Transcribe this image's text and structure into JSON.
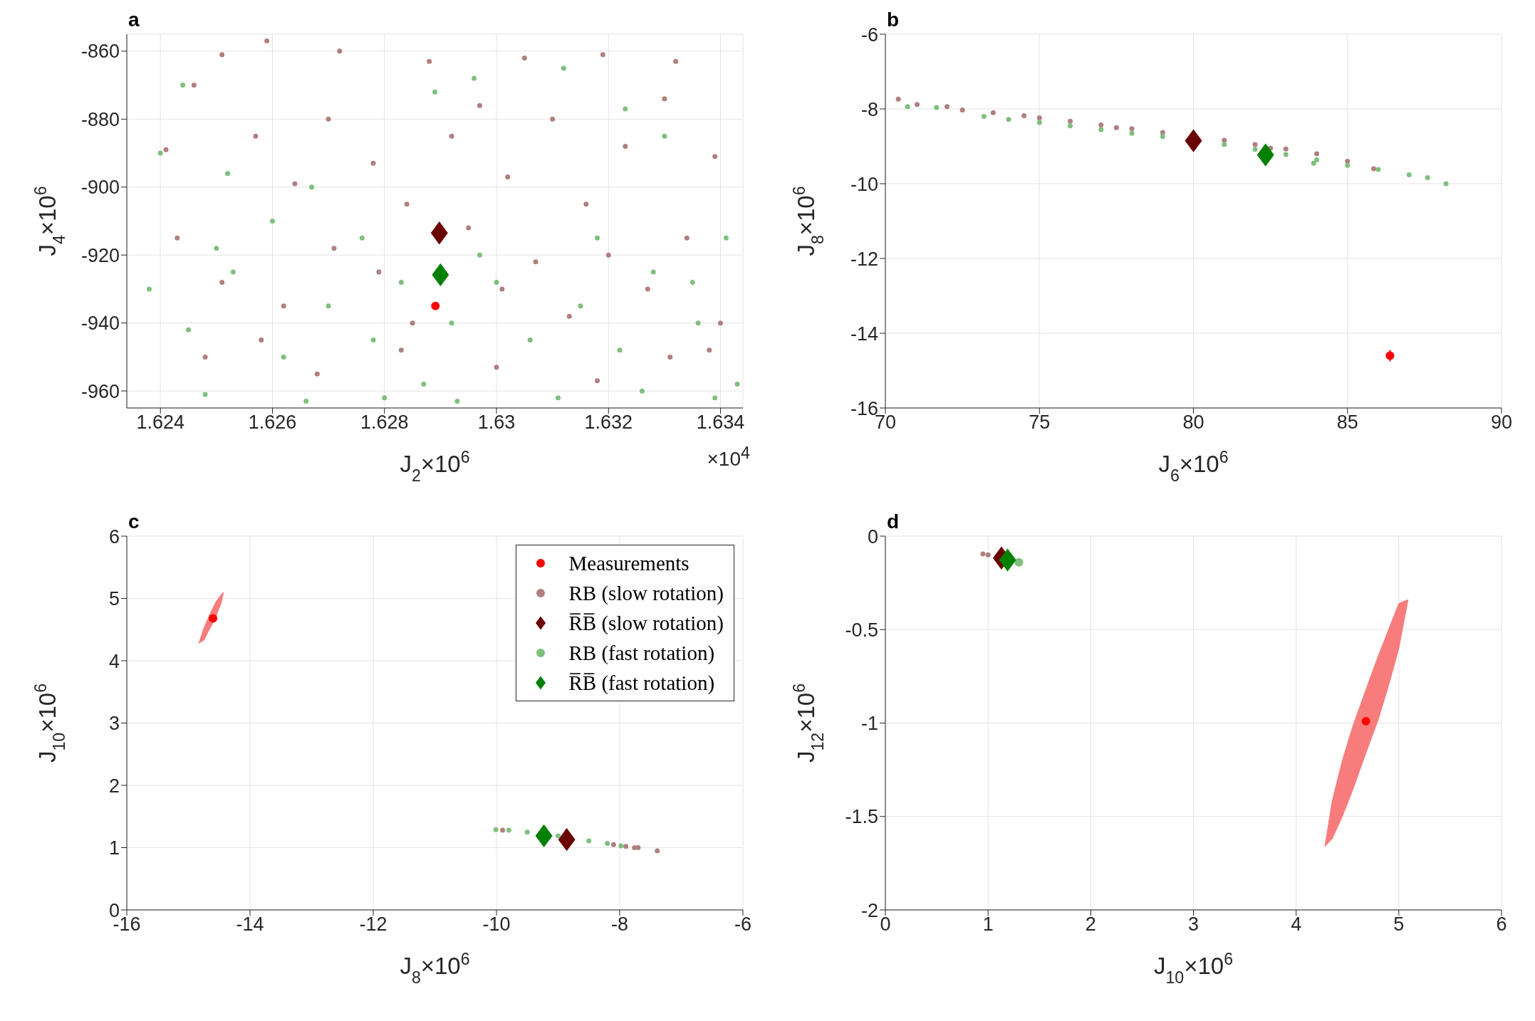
{
  "chart_data": [
    {
      "type": "scatter",
      "title": "a",
      "xlabel": "J$_{2}$×10$^{6}$",
      "ylabel": "J$_{4}$×10$^{6}$",
      "annotations": [
        "×10$^{4}$"
      ],
      "grid": true,
      "xlim": [
        1.6234,
        1.6344
      ],
      "xticks": [
        1.624,
        1.626,
        1.628,
        1.63,
        1.632,
        1.634
      ],
      "ylim": [
        -965,
        -855
      ],
      "yticks": [
        -960,
        -940,
        -920,
        -900,
        -880,
        -860
      ],
      "series": [
        {
          "color": "#b07f7f",
          "marker": "circle",
          "x": [
            1.6251,
            1.6259,
            1.6272,
            1.6288,
            1.6305,
            1.6319,
            1.6332,
            1.6241,
            1.6246,
            1.6257,
            1.6264,
            1.627,
            1.6278,
            1.6284,
            1.6292,
            1.6297,
            1.6302,
            1.631,
            1.6316,
            1.6323,
            1.633,
            1.6339,
            1.6243,
            1.6251,
            1.6262,
            1.6271,
            1.6279,
            1.6285,
            1.6295,
            1.6301,
            1.6307,
            1.6313,
            1.632,
            1.6327,
            1.6334,
            1.634,
            1.6248,
            1.6258,
            1.6268,
            1.6283,
            1.63,
            1.6318,
            1.6331,
            1.6338
          ],
          "values": [
            -861,
            -857,
            -860,
            -863,
            -862,
            -861,
            -863,
            -889,
            -870,
            -885,
            -899,
            -880,
            -893,
            -905,
            -885,
            -876,
            -897,
            -880,
            -905,
            -888,
            -874,
            -891,
            -915,
            -928,
            -935,
            -918,
            -925,
            -940,
            -912,
            -930,
            -922,
            -938,
            -920,
            -930,
            -915,
            -940,
            -950,
            -945,
            -955,
            -948,
            -953,
            -957,
            -950,
            -948
          ]
        },
        {
          "color": "#7fbf7f",
          "marker": "circle",
          "x": [
            1.624,
            1.6244,
            1.6252,
            1.626,
            1.6267,
            1.6276,
            1.6289,
            1.6296,
            1.6312,
            1.6323,
            1.633,
            1.6341,
            1.6238,
            1.6245,
            1.6253,
            1.6262,
            1.627,
            1.6278,
            1.6287,
            1.6292,
            1.63,
            1.6306,
            1.6315,
            1.6322,
            1.6328,
            1.6336,
            1.6343,
            1.6248,
            1.6266,
            1.628,
            1.6293,
            1.6311,
            1.6326,
            1.6339,
            1.625,
            1.6283,
            1.6297,
            1.6318,
            1.6335
          ],
          "values": [
            -890,
            -870,
            -896,
            -910,
            -900,
            -915,
            -872,
            -868,
            -865,
            -877,
            -885,
            -915,
            -930,
            -942,
            -925,
            -950,
            -935,
            -945,
            -958,
            -940,
            -928,
            -945,
            -935,
            -948,
            -925,
            -940,
            -958,
            -961,
            -963,
            -962,
            -963,
            -962,
            -960,
            -962,
            -918,
            -928,
            -920,
            -915,
            -928
          ]
        },
        {
          "color": "#ff0000",
          "marker": "circle",
          "x": [
            1.62891
          ],
          "values": [
            -935
          ]
        },
        {
          "color": "#6b0000",
          "marker": "diamond",
          "x": [
            1.62898
          ],
          "values": [
            -913.5
          ]
        },
        {
          "color": "#008000",
          "marker": "diamond",
          "x": [
            1.629
          ],
          "values": [
            -925.8
          ]
        }
      ]
    },
    {
      "type": "scatter",
      "title": "b",
      "xlabel": "J$_{6}$×10$^{6}$",
      "ylabel": "J$_{8}$×10$^{6}$",
      "grid": true,
      "xlim": [
        70,
        90
      ],
      "xticks": [
        70,
        75,
        80,
        85,
        90
      ],
      "ylim": [
        -16,
        -6
      ],
      "yticks": [
        -16,
        -14,
        -12,
        -10,
        -8,
        -6
      ],
      "series": [
        {
          "color": "#b07f7f",
          "marker": "circle",
          "x": [
            70.42,
            71.03,
            72.0,
            72.5,
            73.5,
            74.5,
            75,
            76,
            77,
            78,
            79,
            81,
            82,
            83,
            84,
            85,
            85.85,
            77.5,
            82.5
          ],
          "values": [
            -7.74,
            -7.88,
            -7.94,
            -8.03,
            -8.1,
            -8.18,
            -8.24,
            -8.33,
            -8.43,
            -8.53,
            -8.63,
            -8.84,
            -8.95,
            -9.07,
            -9.2,
            -9.4,
            -9.6,
            -8.5,
            -9.05
          ]
        },
        {
          "color": "#7fbf7f",
          "marker": "circle",
          "x": [
            70.72,
            71.66,
            73.2,
            74,
            75,
            76,
            77,
            78,
            79,
            81,
            82,
            83,
            84,
            85,
            86,
            87,
            87.6,
            88.2,
            83.9
          ],
          "values": [
            -7.94,
            -7.96,
            -8.2,
            -8.28,
            -8.36,
            -8.45,
            -8.55,
            -8.65,
            -8.74,
            -8.95,
            -9.08,
            -9.22,
            -9.36,
            -9.51,
            -9.62,
            -9.76,
            -9.84,
            -10.0,
            -9.45
          ]
        },
        {
          "color": "#ff0000",
          "marker": "circle",
          "x": [
            86.38
          ],
          "values": [
            -14.6
          ],
          "errors": [
            0.15
          ]
        },
        {
          "color": "#6b0000",
          "marker": "diamond",
          "x": [
            80.0
          ],
          "values": [
            -8.85
          ]
        },
        {
          "color": "#008000",
          "marker": "diamond",
          "x": [
            82.34
          ],
          "values": [
            -9.23
          ]
        }
      ]
    },
    {
      "type": "scatter",
      "title": "c",
      "xlabel": "J$_{8}$×10$^{6}$",
      "ylabel": "J$_{10}$×10$^{6}$",
      "grid": true,
      "legend": "top right",
      "xlim": [
        -16,
        -6
      ],
      "xticks": [
        -16,
        -14,
        -12,
        -10,
        -8,
        -6
      ],
      "ylim": [
        0,
        6
      ],
      "yticks": [
        0,
        1,
        2,
        3,
        4,
        5,
        6
      ],
      "series": [
        {
          "type": "area",
          "color": "#f87c7c",
          "x": [
            -14.83,
            -14.75,
            -14.65,
            -14.55,
            -14.47,
            -14.43,
            -14.47,
            -14.55,
            -14.65,
            -14.75,
            -14.83
          ],
          "values": [
            4.28,
            4.33,
            4.52,
            4.72,
            4.92,
            5.1,
            5.06,
            4.95,
            4.75,
            4.52,
            4.28
          ]
        },
        {
          "name": "Measurements",
          "color": "#ff0000",
          "marker": "circle",
          "x": [
            -14.6
          ],
          "values": [
            4.68
          ]
        },
        {
          "name": "RB (slow rotation)",
          "color": "#b07f7f",
          "marker": "circle",
          "x": [
            -9.9,
            -8.1,
            -7.9,
            -7.76,
            -7.7,
            -7.39
          ],
          "values": [
            1.28,
            1.05,
            1.02,
            1.0,
            1.0,
            0.95
          ]
        },
        {
          "name": "R̅B̅ (slow rotation)",
          "color": "#6b0000",
          "marker": "diamond",
          "x": [
            -8.86
          ],
          "values": [
            1.13
          ]
        },
        {
          "name": "RB (fast rotation)",
          "color": "#7fbf7f",
          "marker": "circle",
          "x": [
            -10.01,
            -9.8,
            -9.5,
            -9.0,
            -8.5,
            -8.2,
            -7.98
          ],
          "values": [
            1.29,
            1.28,
            1.25,
            1.19,
            1.11,
            1.07,
            1.03
          ]
        },
        {
          "name": "R̅B̅ (fast rotation)",
          "color": "#008000",
          "marker": "diamond",
          "x": [
            -9.23
          ],
          "values": [
            1.19
          ]
        }
      ]
    },
    {
      "type": "scatter",
      "title": "d",
      "xlabel": "J$_{10}$×10$^{6}$",
      "ylabel": "J$_{12}$×10$^{6}$",
      "grid": true,
      "xlim": [
        0,
        6
      ],
      "xticks": [
        0,
        1,
        2,
        3,
        4,
        5,
        6
      ],
      "ylim": [
        -2,
        0
      ],
      "yticks": [
        -2,
        -1.5,
        -1,
        -0.5,
        0
      ],
      "series": [
        {
          "type": "area",
          "color": "#f87c7c",
          "x": [
            4.28,
            4.35,
            4.45,
            4.55,
            4.68,
            4.8,
            4.9,
            5.0,
            5.09,
            5.0,
            4.9,
            4.8,
            4.68,
            4.55,
            4.45,
            4.35,
            4.28
          ],
          "values": [
            -1.66,
            -1.62,
            -1.5,
            -1.36,
            -1.16,
            -0.98,
            -0.8,
            -0.6,
            -0.34,
            -0.36,
            -0.5,
            -0.64,
            -0.82,
            -1.02,
            -1.2,
            -1.42,
            -1.66
          ]
        },
        {
          "color": "#ff0000",
          "marker": "circle",
          "x": [
            4.68
          ],
          "values": [
            -0.99
          ]
        },
        {
          "color": "#b07f7f",
          "marker": "circle",
          "x": [
            0.95,
            1.0
          ],
          "values": [
            -0.095,
            -0.1
          ]
        },
        {
          "color": "#6b0000",
          "marker": "diamond",
          "x": [
            1.13
          ],
          "values": [
            -0.117
          ]
        },
        {
          "color": "#7fbf7f",
          "marker": "circle",
          "x": [
            1.3
          ],
          "values": [
            -0.14
          ]
        },
        {
          "color": "#008000",
          "marker": "diamond",
          "x": [
            1.19
          ],
          "values": [
            -0.128
          ]
        }
      ]
    }
  ]
}
